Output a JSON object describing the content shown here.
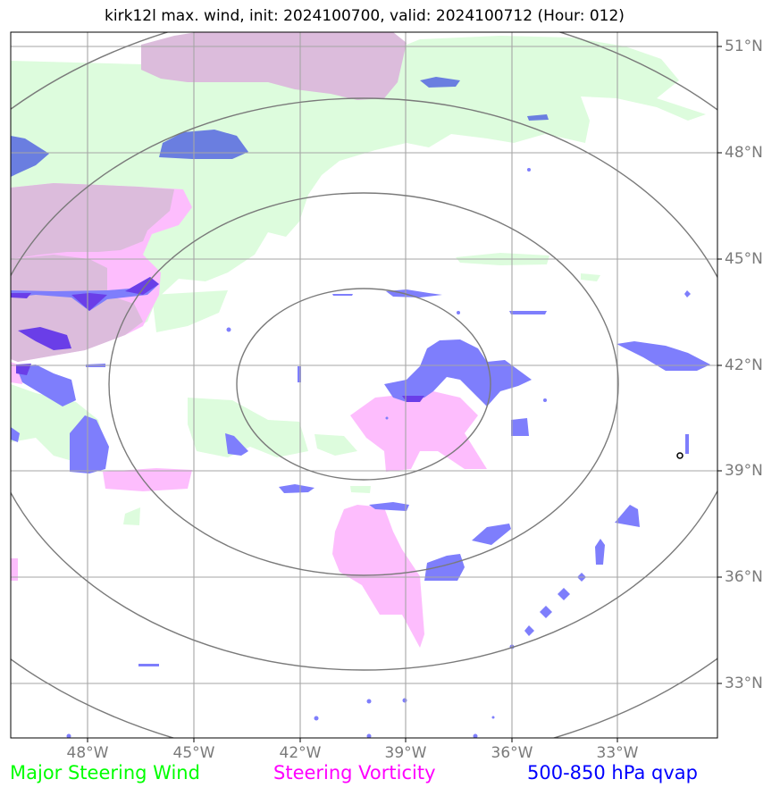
{
  "title": "kirk12l max. wind, init: 2024100700, valid: 2024100712 (Hour: 012)",
  "lat_labels": [
    "51°N",
    "48°N",
    "45°N",
    "42°N",
    "39°N",
    "36°N",
    "33°N"
  ],
  "lon_labels": [
    "48°W",
    "45°W",
    "42°W",
    "39°W",
    "36°W",
    "33°W"
  ],
  "legend": [
    {
      "label": "Major Steering Wind",
      "color": "#00ff00"
    },
    {
      "label": "Steering Vorticity",
      "color": "#ff00ff"
    },
    {
      "label": "500-850 hPa qvap",
      "color": "#0000ff"
    }
  ],
  "colors": {
    "wind_fill": "#ddfcdd",
    "vorticity_fill": "#fdbdfd",
    "wind_vorticity_overlap": "#dcbcdc",
    "qvap_fill": "#7e7efc",
    "qvap_dark": "#6a3ee8",
    "qvap_on_wind": "#6a7ee0",
    "grid": "#a6a6a6",
    "range_rings": "#7a7a7a",
    "tick_labels": "#7a7a7a"
  },
  "map": {
    "projection": "polar-stereographic-style",
    "lon_range": [
      -50,
      -30
    ],
    "lat_range": [
      31.5,
      51.5
    ],
    "center_marker": "storm-center-circle",
    "range_rings": 4
  }
}
